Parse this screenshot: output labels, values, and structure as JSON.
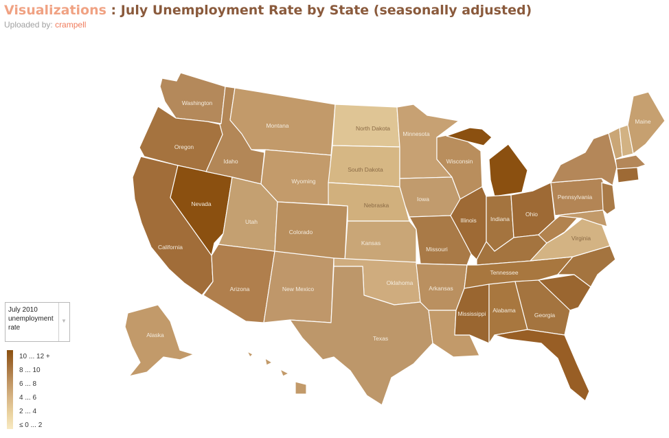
{
  "header": {
    "section": "Visualizations",
    "separator": " : ",
    "title": "July Unemployment Rate by State (seasonally adjusted)",
    "uploaded_prefix": "Uploaded by: ",
    "uploaded_user": "crampell"
  },
  "selector": {
    "value": "July 2010 unemployment rate"
  },
  "legend": {
    "items": [
      "10 ... 12 +",
      "8 ... 10",
      "6 ... 8",
      "4 ... 6",
      "2 ... 4",
      "≤ 0 ... 2"
    ],
    "colors": [
      "#8b5010",
      "#a4703a",
      "#bf9462",
      "#d7b585",
      "#ead29f",
      "#f8e9c2"
    ]
  },
  "states": {
    "washington": "Washington",
    "oregon": "Oregon",
    "california": "California",
    "nevada": "Nevada",
    "idaho": "Idaho",
    "montana": "Montana",
    "wyoming": "Wyoming",
    "utah": "Utah",
    "colorado": "Colorado",
    "arizona": "Arizona",
    "new_mexico": "New Mexico",
    "north_dakota": "North Dakota",
    "south_dakota": "South Dakota",
    "nebraska": "Nebraska",
    "kansas": "Kansas",
    "oklahoma": "Oklahoma",
    "texas": "Texas",
    "minnesota": "Minnesota",
    "iowa": "Iowa",
    "missouri": "Missouri",
    "arkansas": "Arkansas",
    "wisconsin": "Wisconsin",
    "illinois": "Illinois",
    "indiana": "Indiana",
    "ohio": "Ohio",
    "tennessee": "Tennessee",
    "mississippi": "Mississippi",
    "alabama": "Alabama",
    "georgia": "Georgia",
    "pennsylvania": "Pennsylvania",
    "virginia": "Virginia",
    "maine": "Maine",
    "alaska": "Alaska"
  }
}
